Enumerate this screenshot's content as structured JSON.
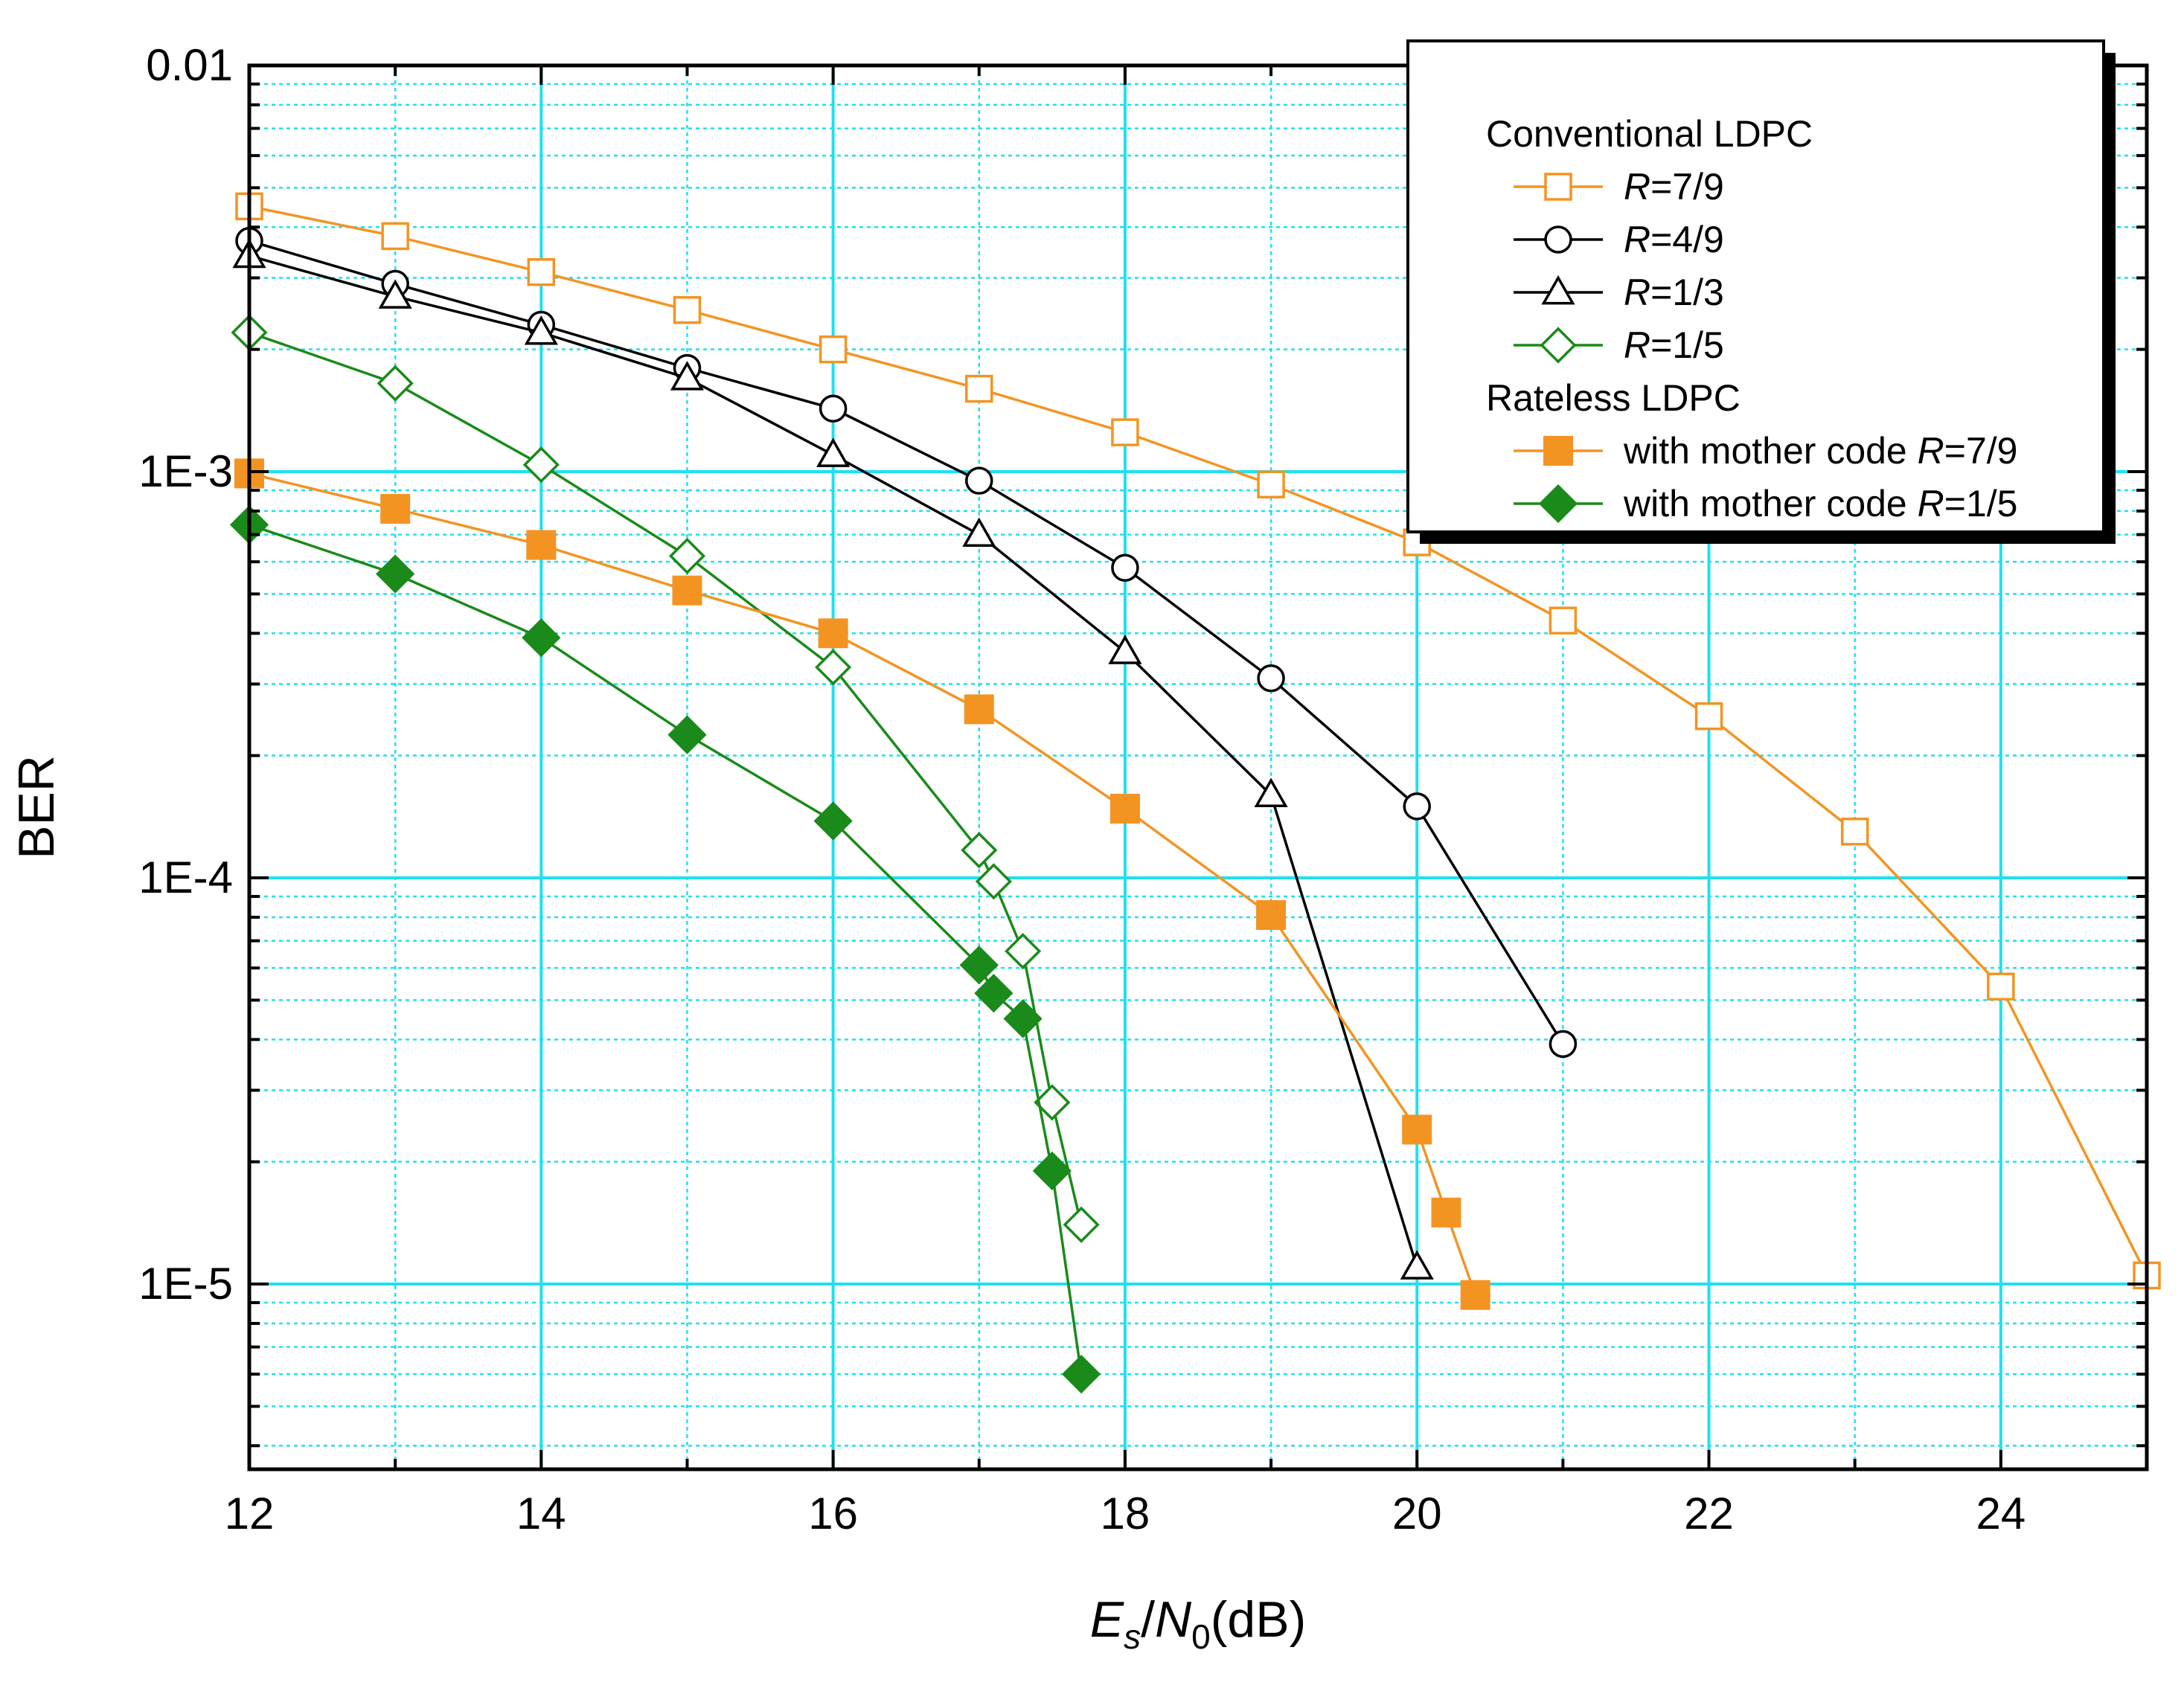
{
  "chart_data": {
    "type": "line",
    "title": "",
    "xlabel": {
      "e": "E",
      "s": "s",
      "slash": "/",
      "n": "N",
      "zero": "0",
      "unit": "(dB)"
    },
    "ylabel": "BER",
    "xlim": [
      12,
      25
    ],
    "ylim": [
      3.5e-06,
      0.01
    ],
    "yscale": "log",
    "grid": true,
    "x_ticks": [
      12,
      14,
      16,
      18,
      20,
      22,
      24
    ],
    "x_tick_labels": [
      "12",
      "14",
      "16",
      "18",
      "20",
      "22",
      "24"
    ],
    "y_ticks": [
      0.01,
      0.001,
      0.0001,
      1e-05
    ],
    "y_tick_labels": [
      "0.01",
      "1E-3",
      "1E-4",
      "1E-5"
    ],
    "legend_position": "top-right",
    "legend_groups": [
      {
        "heading": "Conventional LDPC",
        "entries": [
          {
            "series": 0,
            "prefix": "",
            "r": "R",
            "suffix": "=7/9"
          },
          {
            "series": 1,
            "prefix": "",
            "r": "R",
            "suffix": "=4/9"
          },
          {
            "series": 2,
            "prefix": "",
            "r": "R",
            "suffix": "=1/3"
          },
          {
            "series": 3,
            "prefix": "",
            "r": "R",
            "suffix": "=1/5"
          }
        ]
      },
      {
        "heading": "Rateless LDPC",
        "entries": [
          {
            "series": 4,
            "prefix": "with mother code ",
            "r": "R",
            "suffix": "=7/9"
          },
          {
            "series": 5,
            "prefix": "with mother code ",
            "r": "R",
            "suffix": "=1/5"
          }
        ]
      }
    ],
    "series": [
      {
        "name": "Conventional LDPC R=7/9",
        "color": "#f39422",
        "marker": "square",
        "filled": false,
        "x": [
          12,
          13,
          14,
          15,
          16,
          17,
          18,
          19,
          20,
          21,
          22,
          23,
          24,
          25
        ],
        "y": [
          0.0045,
          0.0038,
          0.0031,
          0.0025,
          0.002,
          0.0016,
          0.00125,
          0.00093,
          0.00067,
          0.00043,
          0.00025,
          0.00013,
          5.4e-05,
          1.05e-05
        ]
      },
      {
        "name": "Conventional LDPC R=4/9",
        "color": "#000000",
        "marker": "circle",
        "filled": false,
        "x": [
          12,
          13,
          14,
          15,
          16,
          17,
          18,
          19,
          20,
          21
        ],
        "y": [
          0.0037,
          0.0029,
          0.0023,
          0.0018,
          0.00143,
          0.00095,
          0.00058,
          0.00031,
          0.00015,
          3.9e-05
        ]
      },
      {
        "name": "Conventional LDPC R=1/3",
        "color": "#000000",
        "marker": "triangle",
        "filled": false,
        "x": [
          12,
          13,
          14,
          15,
          16,
          17,
          18,
          19,
          20
        ],
        "y": [
          0.0034,
          0.0027,
          0.0022,
          0.0017,
          0.0011,
          0.0007,
          0.00036,
          0.00016,
          1.1e-05
        ]
      },
      {
        "name": "Conventional LDPC R=1/5",
        "color": "#1a8a1a",
        "marker": "diamond",
        "filled": false,
        "x": [
          12,
          13,
          14,
          15,
          16,
          17,
          17.1,
          17.3,
          17.5,
          17.7
        ],
        "y": [
          0.0022,
          0.00165,
          0.00104,
          0.00062,
          0.00033,
          0.000117,
          9.8e-05,
          6.6e-05,
          2.8e-05,
          1.4e-05
        ]
      },
      {
        "name": "Rateless LDPC with mother code R=7/9",
        "color": "#f39422",
        "marker": "square",
        "filled": true,
        "x": [
          12,
          13,
          14,
          15,
          16,
          17,
          18,
          19,
          20,
          20.2,
          20.4
        ],
        "y": [
          0.00099,
          0.00081,
          0.00066,
          0.00051,
          0.0004,
          0.00026,
          0.000148,
          8.1e-05,
          2.4e-05,
          1.5e-05,
          9.4e-06
        ]
      },
      {
        "name": "Rateless LDPC with mother code R=1/5",
        "color": "#1a8a1a",
        "marker": "diamond",
        "filled": true,
        "x": [
          12,
          13,
          14,
          15,
          16,
          17,
          17.1,
          17.3,
          17.5,
          17.7
        ],
        "y": [
          0.00074,
          0.00056,
          0.00039,
          0.000225,
          0.000138,
          6.1e-05,
          5.2e-05,
          4.5e-05,
          1.9e-05,
          6e-06
        ]
      }
    ]
  }
}
